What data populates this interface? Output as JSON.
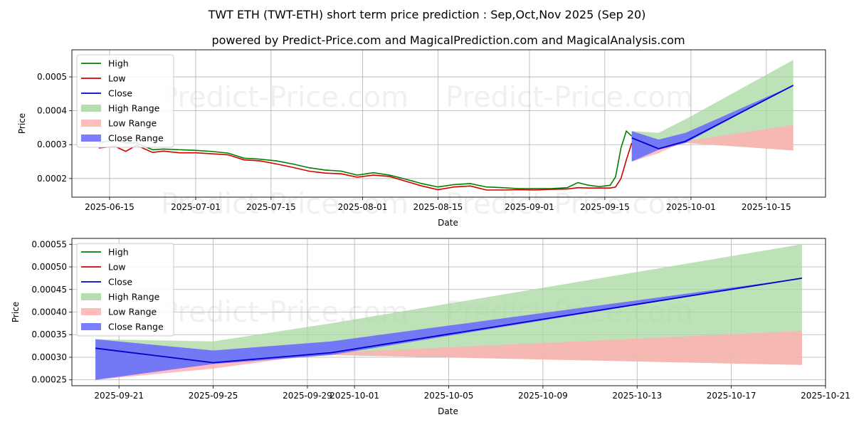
{
  "title": "TWT ETH (TWT-ETH) short term price prediction : Sep,Oct,Nov 2025 (Sep 20)",
  "subtitle": "powered by Predict-Price.com and MagicalPrediction.com and MagicalAnalysis.com",
  "watermark": "Predict-Price.com",
  "colors": {
    "high": "#008000",
    "low": "#d40000",
    "close": "#0000cc",
    "high_range": "#a8d8a0",
    "low_range": "#ffb0b0",
    "close_range": "#6666ff"
  },
  "legend": [
    "High",
    "Low",
    "Close",
    "High Range",
    "Low Range",
    "Close Range"
  ],
  "chart_data": [
    {
      "type": "line",
      "xlabel": "Date",
      "ylabel": "Price",
      "xlim": [
        "2025-06-08",
        "2025-10-26"
      ],
      "ylim": [
        0.000145,
        0.00058
      ],
      "x_ticks": [
        "2025-06-15",
        "2025-07-01",
        "2025-07-15",
        "2025-08-01",
        "2025-08-15",
        "2025-09-01",
        "2025-09-15",
        "2025-10-01",
        "2025-10-15"
      ],
      "y_ticks": [
        0.0002,
        0.0003,
        0.0004,
        0.0005
      ],
      "y_tick_labels": [
        "0.0002",
        "0.0003",
        "0.0004",
        "0.0005"
      ],
      "legend_position": "top-left",
      "grid": true,
      "history": {
        "dates": [
          "2025-06-13",
          "2025-06-16",
          "2025-06-18",
          "2025-06-20",
          "2025-06-23",
          "2025-06-25",
          "2025-06-28",
          "2025-07-01",
          "2025-07-04",
          "2025-07-07",
          "2025-07-10",
          "2025-07-13",
          "2025-07-16",
          "2025-07-19",
          "2025-07-22",
          "2025-07-25",
          "2025-07-28",
          "2025-07-31",
          "2025-08-03",
          "2025-08-06",
          "2025-08-09",
          "2025-08-12",
          "2025-08-15",
          "2025-08-18",
          "2025-08-21",
          "2025-08-24",
          "2025-08-27",
          "2025-08-30",
          "2025-09-02",
          "2025-09-05",
          "2025-09-08",
          "2025-09-10",
          "2025-09-12",
          "2025-09-14",
          "2025-09-16",
          "2025-09-17",
          "2025-09-18",
          "2025-09-19",
          "2025-09-20"
        ],
        "high": [
          0.000305,
          0.000315,
          0.000305,
          0.000305,
          0.000285,
          0.000287,
          0.000285,
          0.000283,
          0.00028,
          0.000275,
          0.00026,
          0.000257,
          0.000252,
          0.000243,
          0.000232,
          0.000225,
          0.000222,
          0.00021,
          0.000217,
          0.00021,
          0.000198,
          0.000185,
          0.000175,
          0.000182,
          0.000185,
          0.000175,
          0.000173,
          0.00017,
          0.00017,
          0.00017,
          0.000173,
          0.000188,
          0.00018,
          0.000176,
          0.00018,
          0.000205,
          0.00029,
          0.00034,
          0.000325
        ],
        "low": [
          0.00029,
          0.000295,
          0.00028,
          0.000298,
          0.000277,
          0.000281,
          0.000276,
          0.000276,
          0.000273,
          0.00027,
          0.000255,
          0.000252,
          0.000243,
          0.000233,
          0.000222,
          0.000216,
          0.000214,
          0.000204,
          0.00021,
          0.000206,
          0.000192,
          0.000178,
          0.000167,
          0.000175,
          0.000178,
          0.000166,
          0.000166,
          0.000167,
          0.000166,
          0.000168,
          0.000169,
          0.000173,
          0.000172,
          0.000172,
          0.000172,
          0.000175,
          0.0002,
          0.000255,
          0.000305
        ],
        "close": [
          0.000298,
          0.000305,
          0.000292,
          0.000302,
          0.000281,
          0.000284,
          0.00028,
          0.00028,
          0.000277,
          0.000272,
          0.000258,
          0.000255,
          0.000248,
          0.000238,
          0.000228,
          0.00022,
          0.000218,
          0.000207,
          0.000213,
          0.000208,
          0.000195,
          0.000182,
          0.000171,
          0.000179,
          0.000182,
          0.00017,
          0.00017,
          0.000169,
          0.000168,
          0.000169,
          0.000171,
          0.00018,
          0.000176,
          0.000174,
          0.000176,
          0.00019,
          0.000245,
          0.0003,
          0.00032
        ]
      },
      "forecast": {
        "dates": [
          "2025-09-20",
          "2025-09-25",
          "2025-09-30",
          "2025-10-20"
        ],
        "high_range_top": [
          0.00034,
          0.000335,
          0.000375,
          0.00055
        ],
        "low_range_bottom": [
          0.00025,
          0.00029,
          0.000305,
          0.000283
        ],
        "low_range_top": [
          0.00025,
          0.000275,
          0.00031,
          0.000358
        ],
        "close_range_top": [
          0.00034,
          0.000315,
          0.000335,
          0.000475
        ],
        "close_range_bottom": [
          0.00025,
          0.000285,
          0.000305,
          0.000475
        ],
        "close": [
          0.00032,
          0.000288,
          0.00031,
          0.000475
        ]
      }
    },
    {
      "type": "line",
      "xlabel": "Date",
      "ylabel": "Price",
      "xlim": [
        "2025-09-19",
        "2025-10-21"
      ],
      "ylim": [
        0.000237,
        0.000563
      ],
      "x_ticks": [
        "2025-09-21",
        "2025-09-25",
        "2025-09-29",
        "2025-10-01",
        "2025-10-05",
        "2025-10-09",
        "2025-10-13",
        "2025-10-17",
        "2025-10-21"
      ],
      "y_ticks": [
        0.00025,
        0.0003,
        0.00035,
        0.0004,
        0.00045,
        0.0005,
        0.00055
      ],
      "y_tick_labels": [
        "0.00025",
        "0.00030",
        "0.00035",
        "0.00040",
        "0.00045",
        "0.00050",
        "0.00055"
      ],
      "legend_position": "top-left",
      "grid": true,
      "forecast": {
        "dates": [
          "2025-09-20",
          "2025-09-25",
          "2025-09-30",
          "2025-10-20"
        ],
        "high_range_top": [
          0.00034,
          0.000335,
          0.000375,
          0.00055
        ],
        "low_range_bottom": [
          0.00025,
          0.00029,
          0.000305,
          0.000283
        ],
        "low_range_top": [
          0.00025,
          0.000275,
          0.00031,
          0.000358
        ],
        "close_range_top": [
          0.00034,
          0.000315,
          0.000335,
          0.000475
        ],
        "close_range_bottom": [
          0.00025,
          0.000285,
          0.000305,
          0.000475
        ],
        "close": [
          0.00032,
          0.000288,
          0.00031,
          0.000475
        ]
      }
    }
  ]
}
